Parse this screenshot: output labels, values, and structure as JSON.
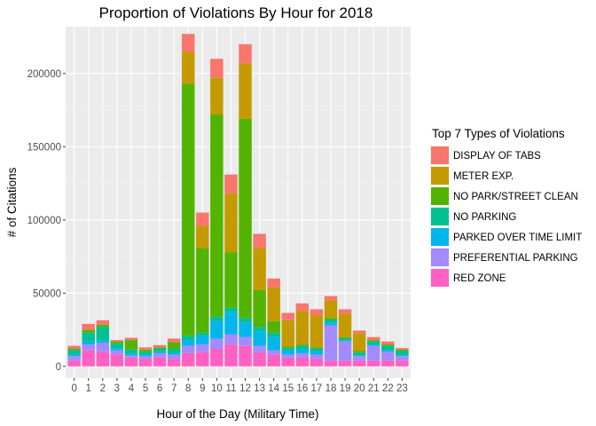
{
  "chart_data": {
    "type": "bar",
    "stacked": true,
    "title": "Proportion of Violations By Hour for 2018",
    "xlabel": "Hour of the Day (Military Time)",
    "ylabel": "# of Citations",
    "ylim": [
      -8000,
      232000
    ],
    "yticks": [
      0,
      50000,
      100000,
      150000,
      200000
    ],
    "ytick_labels": [
      "0",
      "50000",
      "100000",
      "150000",
      "200000"
    ],
    "grid": true,
    "legend_position": "right",
    "legend_title": "Top 7 Types of Violations",
    "categories": [
      "0",
      "1",
      "2",
      "3",
      "4",
      "5",
      "6",
      "7",
      "8",
      "9",
      "10",
      "11",
      "12",
      "13",
      "14",
      "15",
      "16",
      "17",
      "18",
      "19",
      "20",
      "21",
      "22",
      "23"
    ],
    "series": [
      {
        "name": "RED ZONE",
        "color": "#FF61C3",
        "values": [
          4000,
          11000,
          10000,
          8000,
          6000,
          5000,
          6000,
          5000,
          9000,
          10000,
          12000,
          15000,
          14000,
          10000,
          8000,
          6000,
          6000,
          5000,
          4000,
          4000,
          4000,
          4000,
          4000,
          4000
        ]
      },
      {
        "name": "PREFERENTIAL PARKING",
        "color": "#A58AFF",
        "values": [
          3000,
          4000,
          6000,
          3000,
          1500,
          2000,
          3000,
          3000,
          5000,
          5000,
          7000,
          7000,
          6000,
          4000,
          3000,
          2000,
          3000,
          3000,
          24000,
          13000,
          3000,
          10000,
          6000,
          3000
        ]
      },
      {
        "name": "PARKED OVER TIME LIMIT",
        "color": "#00B6EB",
        "values": [
          1000,
          2000,
          2000,
          1500,
          1000,
          1000,
          1000,
          1000,
          4000,
          6000,
          12000,
          15000,
          10000,
          10000,
          9000,
          3000,
          3000,
          2500,
          2000,
          1000,
          500,
          1000,
          1000,
          500
        ]
      },
      {
        "name": "NO PARKING",
        "color": "#00C094",
        "values": [
          3000,
          6000,
          9000,
          3000,
          3000,
          2000,
          2000,
          3000,
          3000,
          2000,
          3000,
          3000,
          3000,
          3000,
          3000,
          1500,
          2000,
          1500,
          2000,
          1000,
          2000,
          2000,
          3000,
          3000
        ]
      },
      {
        "name": "NO PARK/STREET CLEAN",
        "color": "#53B400",
        "values": [
          1000,
          2000,
          1500,
          1500,
          6500,
          1500,
          1000,
          4500,
          172000,
          58000,
          138000,
          38000,
          136000,
          25000,
          8000,
          1000,
          1000,
          1000,
          1000,
          1000,
          1000,
          1000,
          1000,
          1000
        ]
      },
      {
        "name": "METER EXP.",
        "color": "#C49A00",
        "values": [
          0,
          0,
          0,
          0,
          0,
          0,
          0,
          0,
          22000,
          15000,
          25000,
          40000,
          38000,
          29000,
          23000,
          18000,
          23000,
          22000,
          12000,
          16000,
          12000,
          0,
          0,
          0
        ]
      },
      {
        "name": "DISPLAY OF TABS",
        "color": "#F8766D",
        "values": [
          2000,
          4000,
          3000,
          1000,
          1500,
          1500,
          1500,
          2500,
          12000,
          9000,
          13000,
          13000,
          13000,
          9500,
          6000,
          5000,
          5000,
          4000,
          3000,
          3000,
          2000,
          2000,
          2000,
          1000
        ]
      }
    ]
  }
}
